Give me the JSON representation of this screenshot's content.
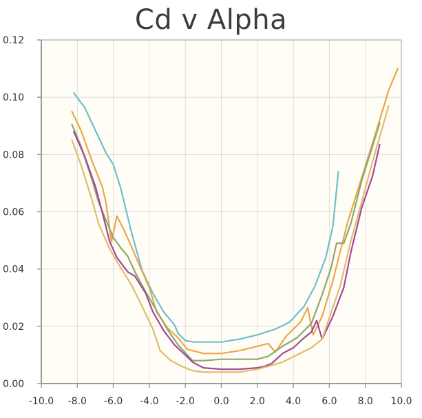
{
  "chart_data": {
    "type": "line",
    "title": "Cd v Alpha",
    "xlabel": "",
    "ylabel": "",
    "xlim": [
      -10,
      10
    ],
    "ylim": [
      0,
      0.12
    ],
    "x_ticks": [
      -10,
      -8,
      -6,
      -4,
      -2,
      0,
      2,
      4,
      6,
      8,
      10
    ],
    "x_tick_labels": [
      "-10.0",
      "-8.0",
      "-6.0",
      "-4.0",
      "-2.0",
      "0.0",
      "2.0",
      "4.0",
      "6.0",
      "8.0",
      "10.0"
    ],
    "y_ticks": [
      0,
      0.02,
      0.04,
      0.06,
      0.08,
      0.1,
      0.12
    ],
    "y_tick_labels": [
      "0.00",
      "0.02",
      "0.04",
      "0.06",
      "0.08",
      "0.10",
      "0.12"
    ],
    "grid": true,
    "colors": {
      "plot_background": "#fffdf5",
      "grid": "#dcdcdc",
      "axis": "#999999"
    },
    "series": [
      {
        "color": "#6bbfcc",
        "points": [
          [
            -8.2,
            0.1015
          ],
          [
            -7.6,
            0.0965
          ],
          [
            -7.0,
            0.0885
          ],
          [
            -6.4,
            0.0805
          ],
          [
            -6.0,
            0.0765
          ],
          [
            -5.6,
            0.0685
          ],
          [
            -5.0,
            0.053
          ],
          [
            -4.4,
            0.0395
          ],
          [
            -3.8,
            0.0315
          ],
          [
            -3.2,
            0.025
          ],
          [
            -2.6,
            0.0205
          ],
          [
            -2.4,
            0.0175
          ],
          [
            -2.0,
            0.015
          ],
          [
            -1.5,
            0.0145
          ],
          [
            0.0,
            0.0145
          ],
          [
            1.0,
            0.0155
          ],
          [
            2.0,
            0.017
          ],
          [
            3.0,
            0.019
          ],
          [
            3.8,
            0.0215
          ],
          [
            4.6,
            0.027
          ],
          [
            5.2,
            0.034
          ],
          [
            5.8,
            0.044
          ],
          [
            6.2,
            0.055
          ],
          [
            6.5,
            0.074
          ]
        ]
      },
      {
        "color": "#e8a848",
        "points": [
          [
            -8.3,
            0.095
          ],
          [
            -7.8,
            0.0885
          ],
          [
            -7.2,
            0.078
          ],
          [
            -6.6,
            0.0685
          ],
          [
            -6.4,
            0.063
          ],
          [
            -6.1,
            0.0495
          ],
          [
            -5.8,
            0.0585
          ],
          [
            -5.4,
            0.0535
          ],
          [
            -5.0,
            0.048
          ],
          [
            -4.6,
            0.042
          ],
          [
            -4.0,
            0.0335
          ],
          [
            -3.6,
            0.025
          ],
          [
            -3.0,
            0.0195
          ],
          [
            -2.4,
            0.016
          ],
          [
            -1.9,
            0.012
          ],
          [
            -1.0,
            0.0105
          ],
          [
            0.0,
            0.0105
          ],
          [
            1.0,
            0.0115
          ],
          [
            2.0,
            0.013
          ],
          [
            2.6,
            0.014
          ],
          [
            3.0,
            0.011
          ],
          [
            3.6,
            0.0165
          ],
          [
            4.4,
            0.0215
          ],
          [
            4.8,
            0.0265
          ],
          [
            5.1,
            0.017
          ],
          [
            5.6,
            0.0235
          ],
          [
            6.2,
            0.036
          ],
          [
            7.0,
            0.056
          ],
          [
            7.8,
            0.072
          ],
          [
            8.6,
            0.088
          ],
          [
            9.3,
            0.1025
          ],
          [
            9.8,
            0.11
          ]
        ]
      },
      {
        "color": "#8aa870",
        "points": [
          [
            -8.3,
            0.0905
          ],
          [
            -7.8,
            0.083
          ],
          [
            -7.2,
            0.0715
          ],
          [
            -6.8,
            0.063
          ],
          [
            -6.4,
            0.057
          ],
          [
            -6.0,
            0.051
          ],
          [
            -5.6,
            0.0475
          ],
          [
            -5.2,
            0.0445
          ],
          [
            -4.8,
            0.039
          ],
          [
            -4.2,
            0.032
          ],
          [
            -3.6,
            0.0255
          ],
          [
            -3.0,
            0.019
          ],
          [
            -2.4,
            0.0135
          ],
          [
            -1.6,
            0.008
          ],
          [
            -1.0,
            0.008
          ],
          [
            0.0,
            0.0085
          ],
          [
            1.0,
            0.0085
          ],
          [
            2.0,
            0.0085
          ],
          [
            2.6,
            0.0095
          ],
          [
            3.4,
            0.013
          ],
          [
            4.2,
            0.016
          ],
          [
            5.0,
            0.021
          ],
          [
            5.6,
            0.031
          ],
          [
            6.1,
            0.0405
          ],
          [
            6.4,
            0.049
          ],
          [
            6.8,
            0.049
          ],
          [
            7.2,
            0.056
          ],
          [
            7.8,
            0.071
          ],
          [
            8.4,
            0.083
          ],
          [
            8.8,
            0.091
          ]
        ]
      },
      {
        "color": "#a04898",
        "points": [
          [
            -8.2,
            0.088
          ],
          [
            -7.6,
            0.0795
          ],
          [
            -7.0,
            0.069
          ],
          [
            -6.6,
            0.0595
          ],
          [
            -6.2,
            0.0495
          ],
          [
            -5.8,
            0.044
          ],
          [
            -5.2,
            0.039
          ],
          [
            -4.8,
            0.0375
          ],
          [
            -4.2,
            0.0315
          ],
          [
            -3.8,
            0.025
          ],
          [
            -3.2,
            0.0185
          ],
          [
            -2.6,
            0.0135
          ],
          [
            -2.0,
            0.01
          ],
          [
            -1.6,
            0.0075
          ],
          [
            -1.0,
            0.0055
          ],
          [
            0.0,
            0.005
          ],
          [
            1.0,
            0.005
          ],
          [
            2.0,
            0.0055
          ],
          [
            2.4,
            0.006
          ],
          [
            2.8,
            0.007
          ],
          [
            3.4,
            0.0105
          ],
          [
            4.0,
            0.0125
          ],
          [
            4.6,
            0.016
          ],
          [
            5.0,
            0.018
          ],
          [
            5.3,
            0.022
          ],
          [
            5.6,
            0.0155
          ],
          [
            6.2,
            0.0235
          ],
          [
            6.8,
            0.0335
          ],
          [
            7.2,
            0.046
          ],
          [
            7.8,
            0.0615
          ],
          [
            8.4,
            0.0725
          ],
          [
            8.8,
            0.0835
          ]
        ]
      },
      {
        "color": "#e0bc6c",
        "points": [
          [
            -8.3,
            0.085
          ],
          [
            -7.8,
            0.0765
          ],
          [
            -7.2,
            0.0645
          ],
          [
            -6.8,
            0.0555
          ],
          [
            -6.2,
            0.047
          ],
          [
            -5.6,
            0.0405
          ],
          [
            -5.0,
            0.0345
          ],
          [
            -4.4,
            0.027
          ],
          [
            -3.8,
            0.019
          ],
          [
            -3.4,
            0.0115
          ],
          [
            -2.8,
            0.008
          ],
          [
            -2.2,
            0.006
          ],
          [
            -1.6,
            0.0045
          ],
          [
            -1.0,
            0.004
          ],
          [
            0.0,
            0.004
          ],
          [
            1.0,
            0.004
          ],
          [
            2.0,
            0.005
          ],
          [
            2.6,
            0.006
          ],
          [
            3.4,
            0.0075
          ],
          [
            4.2,
            0.01
          ],
          [
            5.0,
            0.0125
          ],
          [
            5.6,
            0.0155
          ],
          [
            6.0,
            0.023
          ],
          [
            6.6,
            0.034
          ],
          [
            7.2,
            0.05
          ],
          [
            7.8,
            0.0635
          ],
          [
            8.4,
            0.0775
          ],
          [
            9.0,
            0.0905
          ],
          [
            9.3,
            0.097
          ]
        ]
      }
    ]
  }
}
